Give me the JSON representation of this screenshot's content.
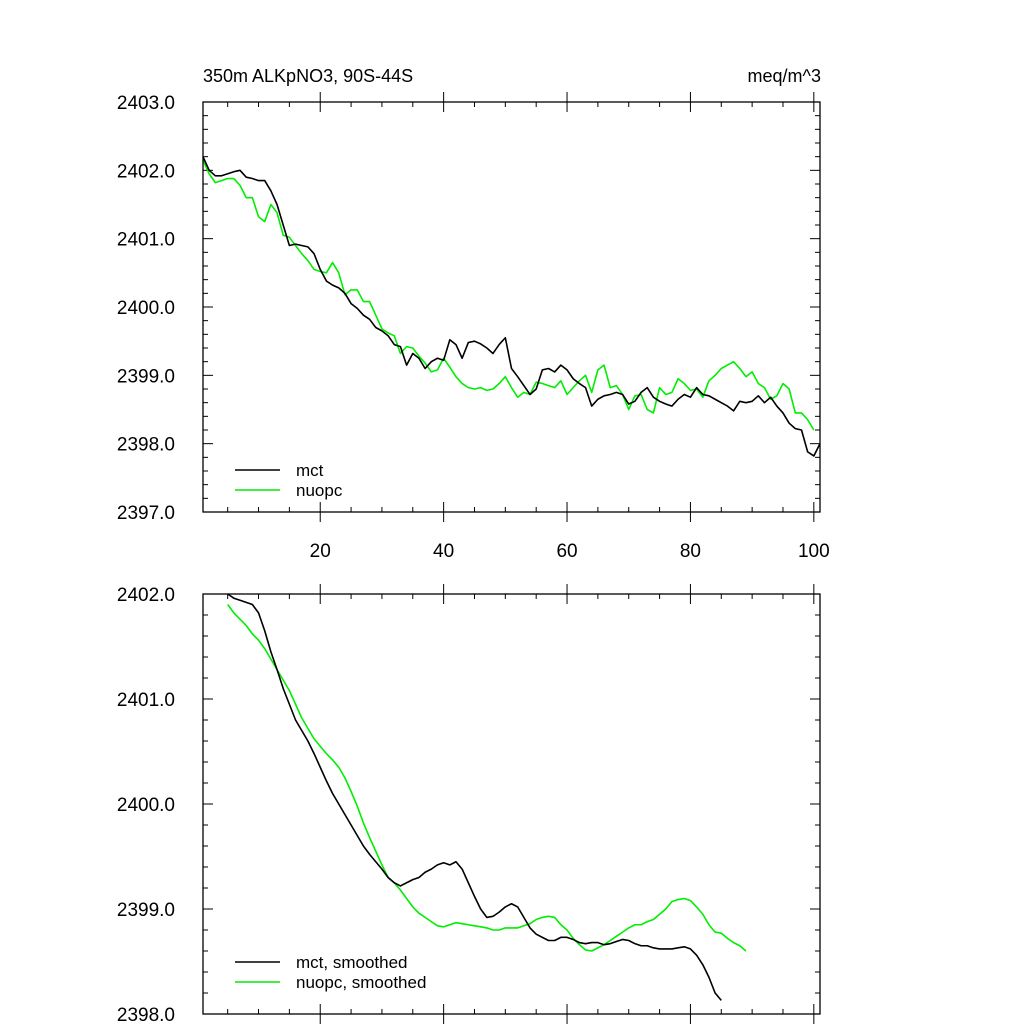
{
  "chart_data": [
    {
      "type": "line",
      "title_left": "350m ALKpNO3, 90S-44S",
      "title_right": "meq/m^3",
      "xlabel": "",
      "ylabel": "",
      "xlim": [
        1,
        101
      ],
      "ylim": [
        2397.0,
        2403.0
      ],
      "x_ticks": [
        20,
        40,
        60,
        80,
        100
      ],
      "x_tick_labels": [
        "20",
        "40",
        "60",
        "80",
        "100"
      ],
      "y_ticks": [
        2397,
        2398,
        2399,
        2400,
        2401,
        2402,
        2403
      ],
      "y_tick_labels": [
        "2397.0",
        "2398.0",
        "2399.0",
        "2400.0",
        "2401.0",
        "2402.0",
        "2403.0"
      ],
      "legend_position": "bottom-left",
      "series": [
        {
          "name": "mct",
          "color": "#000000",
          "x_start": 1,
          "values": [
            2402.2,
            2402.0,
            2401.92,
            2401.92,
            2401.95,
            2401.98,
            2402.0,
            2401.9,
            2401.88,
            2401.85,
            2401.85,
            2401.7,
            2401.5,
            2401.2,
            2400.9,
            2400.92,
            2400.9,
            2400.88,
            2400.78,
            2400.55,
            2400.38,
            2400.32,
            2400.28,
            2400.2,
            2400.05,
            2399.98,
            2399.88,
            2399.82,
            2399.7,
            2399.65,
            2399.58,
            2399.45,
            2399.42,
            2399.15,
            2399.32,
            2399.25,
            2399.1,
            2399.2,
            2399.25,
            2399.22,
            2399.52,
            2399.45,
            2399.25,
            2399.48,
            2399.5,
            2399.46,
            2399.4,
            2399.32,
            2399.45,
            2399.55,
            2399.1,
            2398.98,
            2398.85,
            2398.72,
            2398.8,
            2399.08,
            2399.1,
            2399.05,
            2399.15,
            2399.08,
            2398.95,
            2398.88,
            2398.82,
            2398.55,
            2398.65,
            2398.7,
            2398.72,
            2398.75,
            2398.72,
            2398.58,
            2398.62,
            2398.75,
            2398.82,
            2398.68,
            2398.62,
            2398.58,
            2398.55,
            2398.65,
            2398.72,
            2398.68,
            2398.82,
            2398.72,
            2398.7,
            2398.65,
            2398.6,
            2398.55,
            2398.48,
            2398.62,
            2398.6,
            2398.62,
            2398.7,
            2398.6,
            2398.68,
            2398.55,
            2398.45,
            2398.3,
            2398.22,
            2398.2,
            2397.88,
            2397.82,
            2398.0
          ]
        },
        {
          "name": "nuopc",
          "color": "#00ee00",
          "x_start": 1,
          "values": [
            2402.15,
            2401.95,
            2401.82,
            2401.85,
            2401.88,
            2401.88,
            2401.78,
            2401.6,
            2401.6,
            2401.32,
            2401.25,
            2401.5,
            2401.38,
            2401.05,
            2401.02,
            2400.9,
            2400.78,
            2400.68,
            2400.55,
            2400.52,
            2400.5,
            2400.65,
            2400.5,
            2400.18,
            2400.25,
            2400.25,
            2400.08,
            2400.08,
            2399.88,
            2399.68,
            2399.62,
            2399.58,
            2399.32,
            2399.42,
            2399.4,
            2399.28,
            2399.18,
            2399.05,
            2399.08,
            2399.25,
            2399.12,
            2398.98,
            2398.88,
            2398.82,
            2398.8,
            2398.82,
            2398.78,
            2398.8,
            2398.88,
            2398.98,
            2398.82,
            2398.68,
            2398.75,
            2398.72,
            2398.9,
            2398.88,
            2398.85,
            2398.82,
            2398.92,
            2398.72,
            2398.82,
            2398.92,
            2399.0,
            2398.75,
            2399.08,
            2399.15,
            2398.82,
            2398.85,
            2398.72,
            2398.5,
            2398.7,
            2398.72,
            2398.5,
            2398.45,
            2398.82,
            2398.72,
            2398.75,
            2398.95,
            2398.88,
            2398.78,
            2398.8,
            2398.68,
            2398.92,
            2399.0,
            2399.1,
            2399.15,
            2399.2,
            2399.1,
            2398.98,
            2399.05,
            2398.88,
            2398.82,
            2398.65,
            2398.7,
            2398.88,
            2398.8,
            2398.45,
            2398.45,
            2398.35,
            2398.2
          ]
        }
      ]
    },
    {
      "type": "line",
      "xlim": [
        1,
        101
      ],
      "ylim": [
        2398.0,
        2402.0
      ],
      "x_ticks": [
        20,
        40,
        60,
        80,
        100
      ],
      "y_ticks": [
        2398,
        2399,
        2400,
        2401,
        2402
      ],
      "y_tick_labels": [
        "2398.0",
        "2399.0",
        "2400.0",
        "2401.0",
        "2402.0"
      ],
      "legend_position": "bottom-left",
      "series": [
        {
          "name": "mct, smoothed",
          "color": "#000000",
          "x_start": 5,
          "values": [
            2402.0,
            2401.96,
            2401.94,
            2401.92,
            2401.9,
            2401.82,
            2401.65,
            2401.45,
            2401.28,
            2401.1,
            2400.95,
            2400.8,
            2400.7,
            2400.6,
            2400.48,
            2400.35,
            2400.22,
            2400.1,
            2400.0,
            2399.9,
            2399.8,
            2399.7,
            2399.6,
            2399.52,
            2399.45,
            2399.38,
            2399.3,
            2399.25,
            2399.22,
            2399.25,
            2399.28,
            2399.3,
            2399.35,
            2399.38,
            2399.42,
            2399.44,
            2399.42,
            2399.45,
            2399.38,
            2399.25,
            2399.12,
            2399.0,
            2398.92,
            2398.93,
            2398.97,
            2399.02,
            2399.05,
            2399.02,
            2398.92,
            2398.82,
            2398.76,
            2398.73,
            2398.7,
            2398.7,
            2398.73,
            2398.73,
            2398.71,
            2398.68,
            2398.67,
            2398.68,
            2398.68,
            2398.66,
            2398.67,
            2398.69,
            2398.71,
            2398.7,
            2398.67,
            2398.65,
            2398.65,
            2398.63,
            2398.62,
            2398.62,
            2398.62,
            2398.63,
            2398.64,
            2398.62,
            2398.56,
            2398.47,
            2398.35,
            2398.2,
            2398.13
          ]
        },
        {
          "name": "nuopc, smoothed",
          "color": "#00ee00",
          "x_start": 5,
          "values": [
            2401.9,
            2401.82,
            2401.76,
            2401.7,
            2401.62,
            2401.56,
            2401.48,
            2401.38,
            2401.28,
            2401.18,
            2401.08,
            2400.95,
            2400.82,
            2400.72,
            2400.62,
            2400.55,
            2400.48,
            2400.42,
            2400.35,
            2400.25,
            2400.12,
            2399.98,
            2399.82,
            2399.68,
            2399.55,
            2399.42,
            2399.3,
            2399.25,
            2399.18,
            2399.1,
            2399.02,
            2398.96,
            2398.92,
            2398.88,
            2398.84,
            2398.83,
            2398.85,
            2398.87,
            2398.86,
            2398.85,
            2398.84,
            2398.83,
            2398.82,
            2398.8,
            2398.8,
            2398.82,
            2398.82,
            2398.82,
            2398.84,
            2398.86,
            2398.9,
            2398.92,
            2398.93,
            2398.92,
            2398.85,
            2398.8,
            2398.72,
            2398.66,
            2398.61,
            2398.6,
            2398.63,
            2398.66,
            2398.7,
            2398.74,
            2398.78,
            2398.82,
            2398.85,
            2398.85,
            2398.88,
            2398.9,
            2398.95,
            2399.0,
            2399.07,
            2399.09,
            2399.1,
            2399.08,
            2399.02,
            2398.95,
            2398.85,
            2398.78,
            2398.77,
            2398.72,
            2398.68,
            2398.65,
            2398.6
          ]
        }
      ]
    }
  ]
}
